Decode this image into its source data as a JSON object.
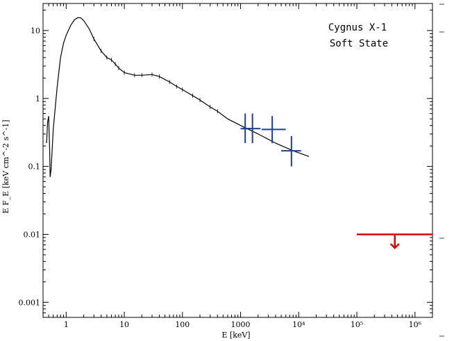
{
  "chart_data": {
    "type": "scatter",
    "title": "",
    "annotations": [
      "Cygnus X-1",
      "Soft State"
    ],
    "xlabel": "E [keV]",
    "ylabel": "E F_E [keV cm^-2 s^-1]",
    "xscale": "log",
    "yscale": "log",
    "xlim": [
      0.4,
      2000000
    ],
    "ylim": [
      0.0006,
      25
    ],
    "grid": false,
    "x_ticks": [
      {
        "value": 1,
        "label": "1"
      },
      {
        "value": 10,
        "label": "10"
      },
      {
        "value": 100,
        "label": "100"
      },
      {
        "value": 1000,
        "label": "1000"
      },
      {
        "value": 10000,
        "label": "10⁴"
      },
      {
        "value": 100000,
        "label": "10⁵"
      },
      {
        "value": 1000000,
        "label": "10⁶"
      }
    ],
    "y_ticks": [
      {
        "value": 0.001,
        "label": "0.001"
      },
      {
        "value": 0.01,
        "label": "0.01"
      },
      {
        "value": 0.1,
        "label": "0.1"
      },
      {
        "value": 1,
        "label": "1"
      },
      {
        "value": 10,
        "label": "10"
      }
    ],
    "series": [
      {
        "type": "line",
        "color": "#000000",
        "points": [
          [
            0.46,
            0.22
          ],
          [
            0.48,
            0.45
          ],
          [
            0.5,
            0.55
          ],
          [
            0.52,
            0.18
          ],
          [
            0.53,
            0.07
          ],
          [
            0.55,
            0.09
          ],
          [
            0.6,
            0.35
          ],
          [
            0.7,
            1.5
          ],
          [
            0.8,
            4.0
          ],
          [
            0.9,
            6.5
          ],
          [
            1.0,
            8.5
          ],
          [
            1.2,
            12.0
          ],
          [
            1.4,
            14.5
          ],
          [
            1.6,
            15.5
          ],
          [
            1.8,
            15.3
          ],
          [
            2.0,
            14.0
          ],
          [
            2.5,
            10.5
          ],
          [
            3.0,
            7.5
          ],
          [
            4.0,
            5.0
          ],
          [
            5.0,
            4.0
          ],
          [
            6.0,
            3.7
          ],
          [
            7.0,
            3.2
          ],
          [
            8.0,
            2.8
          ],
          [
            10.0,
            2.4
          ],
          [
            15.0,
            2.2
          ],
          [
            20.0,
            2.2
          ],
          [
            30.0,
            2.25
          ],
          [
            40.0,
            2.1
          ],
          [
            60.0,
            1.75
          ],
          [
            80.0,
            1.5
          ],
          [
            100.0,
            1.35
          ],
          [
            150.0,
            1.1
          ],
          [
            200.0,
            0.95
          ],
          [
            300.0,
            0.75
          ],
          [
            400.0,
            0.65
          ],
          [
            600.0,
            0.5
          ],
          [
            1000.0,
            0.4
          ],
          [
            2000.0,
            0.3
          ],
          [
            4000.0,
            0.22
          ],
          [
            8000.0,
            0.17
          ],
          [
            15000.0,
            0.14
          ]
        ]
      },
      {
        "type": "errorbars",
        "color": "#1f3f8f",
        "points": [
          {
            "x": 1200,
            "y": 0.36,
            "x_err": [
              1000,
              1450
            ],
            "y_err": [
              0.22,
              0.6
            ]
          },
          {
            "x": 1600,
            "y": 0.36,
            "x_err": [
              1100,
              2200
            ],
            "y_err": [
              0.22,
              0.6
            ]
          },
          {
            "x": 3500,
            "y": 0.35,
            "x_err": [
              2300,
              6000
            ],
            "y_err": [
              0.22,
              0.55
            ]
          },
          {
            "x": 7500,
            "y": 0.17,
            "x_err": [
              5000,
              11000
            ],
            "y_err": [
              0.1,
              0.28
            ]
          }
        ]
      },
      {
        "type": "upper_limit",
        "color": "#e00000",
        "x_range": [
          100000,
          2000000
        ],
        "y": 0.01,
        "arrow_x": 450000,
        "arrow_to": 0.0063
      }
    ]
  }
}
